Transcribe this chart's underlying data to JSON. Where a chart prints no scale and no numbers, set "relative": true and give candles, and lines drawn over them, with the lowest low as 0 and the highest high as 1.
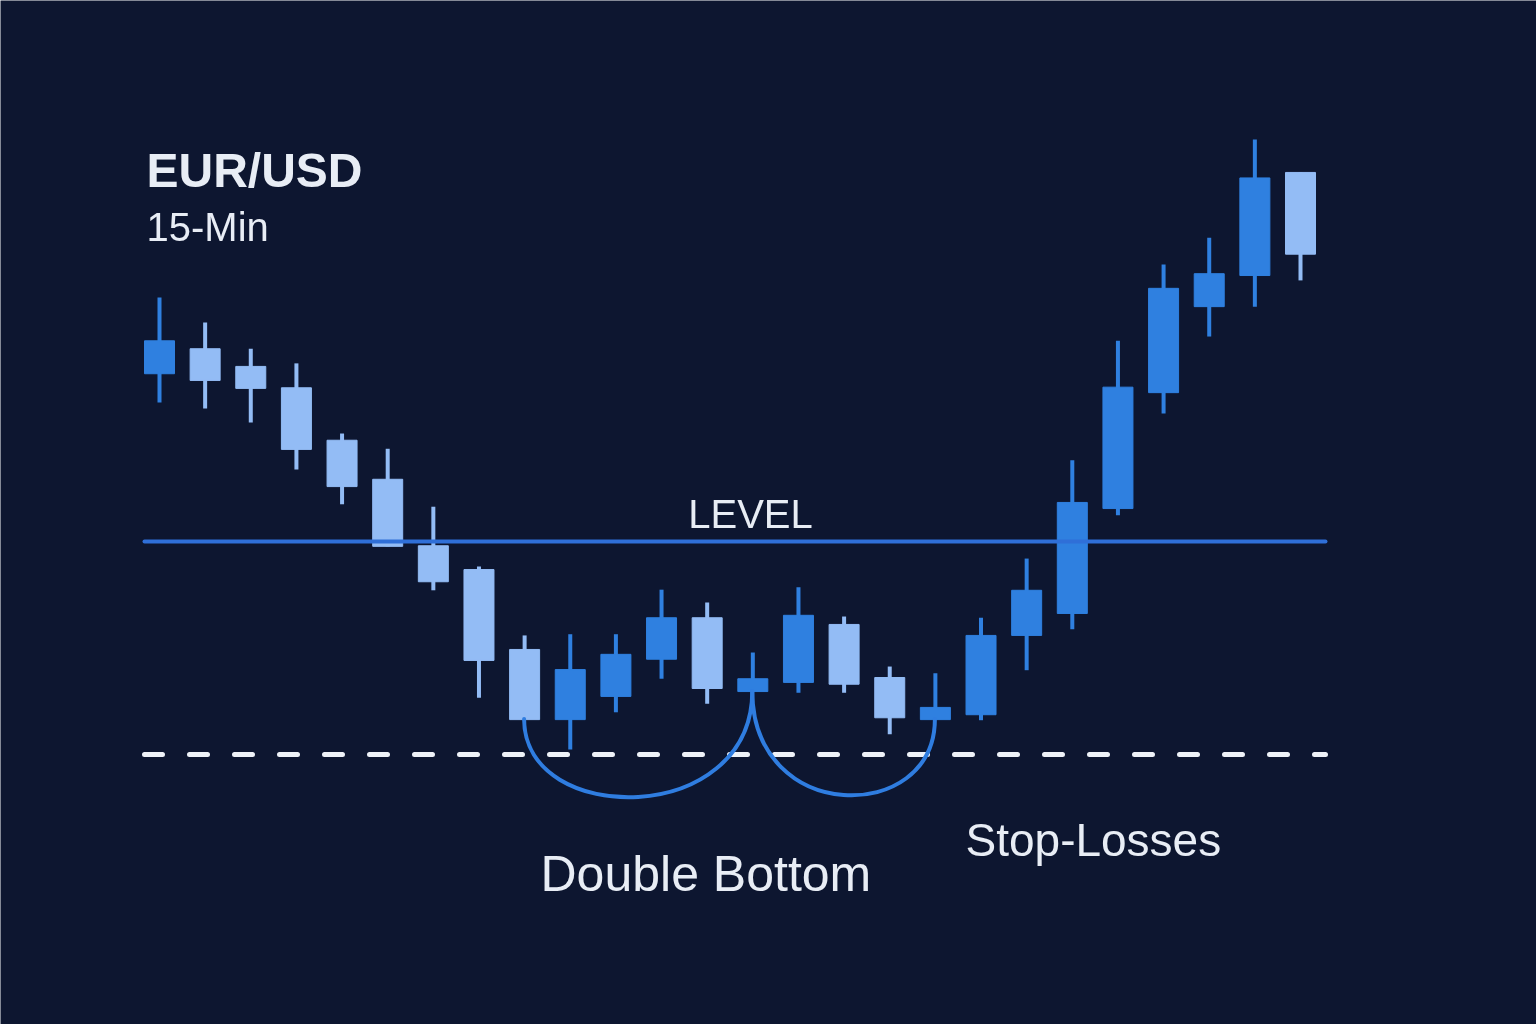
{
  "chart_data": {
    "type": "candlestick",
    "title": "EUR/USD",
    "subtitle": "15-Min",
    "relative": true,
    "categories": [
      null,
      null,
      null,
      null,
      null,
      null,
      null,
      null,
      null,
      null,
      null,
      null,
      null,
      null,
      null,
      null,
      null,
      null,
      null,
      null,
      null,
      null,
      null,
      null,
      null,
      null
    ],
    "ohlc": [
      [
        0.616,
        0.741,
        0.569,
        0.67
      ],
      [
        0.657,
        0.7,
        0.559,
        0.605
      ],
      [
        0.628,
        0.657,
        0.536,
        0.592
      ],
      [
        0.593,
        0.633,
        0.459,
        0.492
      ],
      [
        0.507,
        0.518,
        0.402,
        0.431
      ],
      [
        0.443,
        0.493,
        0.333,
        0.333
      ],
      [
        0.334,
        0.398,
        0.261,
        0.275
      ],
      [
        0.295,
        0.3,
        0.085,
        0.146
      ],
      [
        0.164,
        0.187,
        0.049,
        0.049
      ],
      [
        0.049,
        0.189,
        0,
        0.131
      ],
      [
        0.087,
        0.189,
        0.061,
        0.156
      ],
      [
        0.148,
        0.262,
        0.116,
        0.216
      ],
      [
        0.216,
        0.241,
        0.075,
        0.1
      ],
      [
        0.095,
        0.159,
        0.095,
        0.116
      ],
      [
        0.11,
        0.266,
        0.093,
        0.22
      ],
      [
        0.205,
        0.218,
        0.093,
        0.107
      ],
      [
        0.118,
        0.136,
        0.025,
        0.052
      ],
      [
        0.049,
        0.125,
        0.049,
        0.069
      ],
      [
        0.057,
        0.216,
        0.048,
        0.187
      ],
      [
        0.187,
        0.313,
        0.13,
        0.261
      ],
      [
        0.223,
        0.474,
        0.197,
        0.405
      ],
      [
        0.395,
        0.67,
        0.384,
        0.594
      ],
      [
        0.585,
        0.795,
        0.551,
        0.756
      ],
      [
        0.726,
        0.839,
        0.677,
        0.78
      ],
      [
        0.777,
        1,
        0.726,
        0.937
      ],
      [
        0.946,
        0.946,
        0.769,
        0.812
      ]
    ],
    "colors": [
      "#2f80e0",
      "#93bcf5",
      "#93bcf5",
      "#93bcf5",
      "#93bcf5",
      "#93bcf5",
      "#93bcf5",
      "#93bcf5",
      "#93bcf5",
      "#2f80e0",
      "#2f80e0",
      "#2f80e0",
      "#93bcf5",
      "#2f80e0",
      "#2f80e0",
      "#93bcf5",
      "#93bcf5",
      "#2f80e0",
      "#2f80e0",
      "#2f80e0",
      "#2f80e0",
      "#2f80e0",
      "#2f80e0",
      "#2f80e0",
      "#2f80e0",
      "#93bcf5"
    ],
    "ref_lines": [
      {
        "axis": "y",
        "value": 0.341,
        "label": "LEVEL",
        "color": "#2f6fd8",
        "line_style": "solid"
      },
      {
        "axis": "y",
        "value": -0.008,
        "label": "Stop-Losses",
        "color": "#eef2f8",
        "line_style": "dashed"
      }
    ],
    "annotations": [
      "Double Bottom"
    ]
  }
}
